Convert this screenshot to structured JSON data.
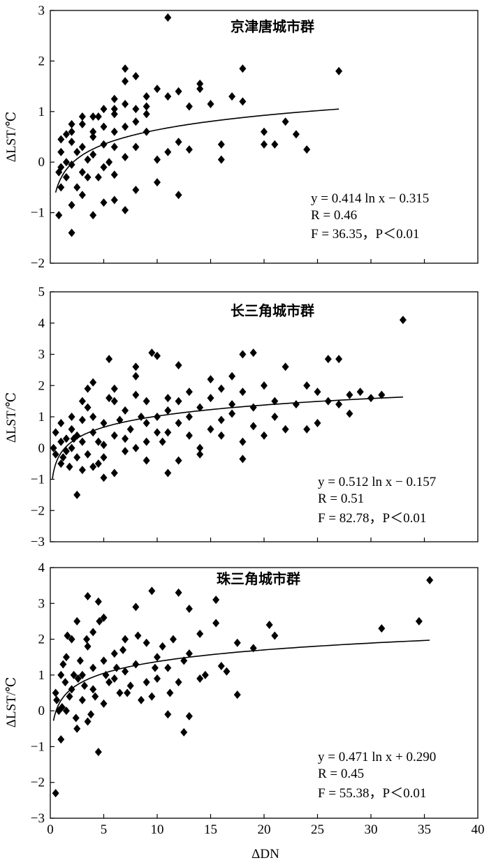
{
  "figure": {
    "xlabel": "ΔDN"
  },
  "chart_data": [
    {
      "type": "scatter",
      "title": "京津唐城市群",
      "ylabel": "ΔLST/℃",
      "xlim": [
        0,
        40
      ],
      "ylim": [
        -2,
        3
      ],
      "yticks": [
        -2,
        -1,
        0,
        1,
        2,
        3
      ],
      "fit": {
        "a": 0.414,
        "b": -0.315,
        "x_range": [
          0.5,
          27
        ]
      },
      "annotation": [
        "y = 0.414 ln x − 0.315",
        "R = 0.46",
        "F = 36.35，P＜0.01"
      ],
      "points": [
        [
          11,
          2.86
        ],
        [
          27,
          1.8
        ],
        [
          18,
          1.85
        ],
        [
          7,
          1.85
        ],
        [
          8,
          1.7
        ],
        [
          7,
          1.6
        ],
        [
          14,
          1.55
        ],
        [
          14,
          1.45
        ],
        [
          10,
          1.45
        ],
        [
          11,
          1.3
        ],
        [
          12,
          1.4
        ],
        [
          17,
          1.3
        ],
        [
          18,
          1.2
        ],
        [
          15,
          1.15
        ],
        [
          13,
          1.1
        ],
        [
          5,
          1.05
        ],
        [
          6,
          1.25
        ],
        [
          6,
          1.05
        ],
        [
          7,
          1.15
        ],
        [
          9,
          1.3
        ],
        [
          9,
          1.1
        ],
        [
          9,
          0.95
        ],
        [
          8,
          0.8
        ],
        [
          4,
          0.9
        ],
        [
          3,
          0.9
        ],
        [
          2,
          0.75
        ],
        [
          1,
          0.45
        ],
        [
          1,
          0.2
        ],
        [
          1.5,
          0.0
        ],
        [
          0.8,
          -0.2
        ],
        [
          1,
          -0.5
        ],
        [
          0.8,
          -1.05
        ],
        [
          2,
          -0.85
        ],
        [
          2,
          -1.4
        ],
        [
          4,
          -1.05
        ],
        [
          5,
          -0.8
        ],
        [
          7,
          -0.95
        ],
        [
          12,
          -0.65
        ],
        [
          22,
          0.8
        ],
        [
          23,
          0.55
        ],
        [
          20,
          0.6
        ],
        [
          20,
          0.35
        ],
        [
          21,
          0.35
        ],
        [
          24,
          0.25
        ],
        [
          16,
          0.35
        ],
        [
          16,
          0.05
        ],
        [
          13,
          0.25
        ],
        [
          12,
          0.4
        ],
        [
          11,
          0.2
        ],
        [
          10,
          0.05
        ],
        [
          10,
          -0.4
        ],
        [
          9,
          0.6
        ],
        [
          3,
          0.3
        ],
        [
          3,
          -0.2
        ],
        [
          2.5,
          -0.5
        ],
        [
          2,
          -0.05
        ],
        [
          4,
          0.6
        ],
        [
          5,
          0.35
        ],
        [
          6,
          0.6
        ],
        [
          6,
          -0.25
        ],
        [
          7,
          0.1
        ],
        [
          8,
          -0.55
        ],
        [
          3.5,
          0.05
        ],
        [
          4.5,
          -0.3
        ],
        [
          5.5,
          0.0
        ],
        [
          6,
          0.3
        ],
        [
          5,
          0.7
        ],
        [
          4,
          0.5
        ],
        [
          2.5,
          0.2
        ],
        [
          1.5,
          0.55
        ],
        [
          1.5,
          -0.3
        ],
        [
          3,
          -0.65
        ],
        [
          6,
          -0.75
        ],
        [
          8,
          0.3
        ],
        [
          7,
          0.7
        ],
        [
          4,
          0.15
        ],
        [
          5,
          -0.1
        ],
        [
          6,
          0.95
        ],
        [
          8,
          1.05
        ],
        [
          4.5,
          0.9
        ],
        [
          1,
          -0.1
        ],
        [
          2,
          0.4
        ],
        [
          3,
          0.75
        ],
        [
          3.5,
          -0.3
        ],
        [
          2,
          0.6
        ]
      ]
    },
    {
      "type": "scatter",
      "title": "长三角城市群",
      "ylabel": "ΔLST/℃",
      "xlim": [
        0,
        40
      ],
      "ylim": [
        -3,
        5
      ],
      "yticks": [
        -3,
        -2,
        -1,
        0,
        1,
        2,
        3,
        4,
        5
      ],
      "fit": {
        "a": 0.512,
        "b": -0.157,
        "x_range": [
          0.2,
          33
        ]
      },
      "annotation": [
        "y = 0.512 ln x − 0.157",
        "R = 0.51",
        "F = 82.78，P＜0.01"
      ],
      "points": [
        [
          33,
          4.1
        ],
        [
          10,
          2.95
        ],
        [
          9.5,
          3.05
        ],
        [
          5.5,
          2.85
        ],
        [
          18,
          3.0
        ],
        [
          19,
          3.05
        ],
        [
          26,
          2.85
        ],
        [
          27,
          2.85
        ],
        [
          22,
          2.6
        ],
        [
          8,
          2.6
        ],
        [
          8,
          2.3
        ],
        [
          12,
          2.65
        ],
        [
          4,
          2.1
        ],
        [
          3.5,
          1.9
        ],
        [
          15,
          2.2
        ],
        [
          17,
          2.3
        ],
        [
          20,
          2.0
        ],
        [
          24,
          2.0
        ],
        [
          25,
          1.8
        ],
        [
          28,
          1.7
        ],
        [
          29,
          1.8
        ],
        [
          30,
          1.6
        ],
        [
          31,
          1.7
        ],
        [
          28,
          1.1
        ],
        [
          21,
          1.0
        ],
        [
          22,
          0.6
        ],
        [
          24,
          0.6
        ],
        [
          18,
          0.2
        ],
        [
          18,
          -0.35
        ],
        [
          16,
          0.9
        ],
        [
          16,
          0.4
        ],
        [
          14,
          0.0
        ],
        [
          12,
          -0.4
        ],
        [
          11,
          -0.8
        ],
        [
          9,
          -0.4
        ],
        [
          5,
          -0.95
        ],
        [
          6,
          -0.8
        ],
        [
          3,
          -0.7
        ],
        [
          2.5,
          -1.5
        ],
        [
          0.5,
          0.5
        ],
        [
          0.5,
          -0.2
        ],
        [
          1,
          0.2
        ],
        [
          1,
          -0.5
        ],
        [
          1.5,
          0.3
        ],
        [
          1.5,
          -0.1
        ],
        [
          2,
          0.6
        ],
        [
          2,
          0.0
        ],
        [
          2.5,
          -0.3
        ],
        [
          3,
          0.2
        ],
        [
          3,
          0.9
        ],
        [
          3.5,
          1.3
        ],
        [
          4,
          0.5
        ],
        [
          4,
          1.0
        ],
        [
          4.5,
          -0.5
        ],
        [
          5,
          0.1
        ],
        [
          5,
          0.8
        ],
        [
          6,
          0.4
        ],
        [
          6,
          1.5
        ],
        [
          7,
          1.2
        ],
        [
          7,
          -0.1
        ],
        [
          7.5,
          0.6
        ],
        [
          8,
          1.7
        ],
        [
          8.5,
          1.0
        ],
        [
          9,
          0.2
        ],
        [
          9,
          1.5
        ],
        [
          10,
          1.0
        ],
        [
          10,
          0.5
        ],
        [
          11,
          1.6
        ],
        [
          11,
          1.2
        ],
        [
          12,
          0.8
        ],
        [
          12,
          1.5
        ],
        [
          13,
          1.0
        ],
        [
          13,
          0.4
        ],
        [
          14,
          1.3
        ],
        [
          15,
          1.6
        ],
        [
          15,
          0.6
        ],
        [
          16,
          1.9
        ],
        [
          17,
          1.1
        ],
        [
          17,
          1.4
        ],
        [
          18,
          1.8
        ],
        [
          19,
          1.3
        ],
        [
          20,
          0.4
        ],
        [
          21,
          1.5
        ],
        [
          23,
          1.4
        ],
        [
          25,
          0.8
        ],
        [
          26,
          1.5
        ],
        [
          27,
          1.4
        ],
        [
          2,
          1.0
        ],
        [
          2.5,
          0.4
        ],
        [
          3.5,
          -0.2
        ],
        [
          4.5,
          0.2
        ],
        [
          5.5,
          1.6
        ],
        [
          6.5,
          0.9
        ],
        [
          1,
          0.8
        ],
        [
          0.3,
          0.0
        ],
        [
          1.8,
          -0.6
        ],
        [
          3,
          1.5
        ],
        [
          6,
          1.9
        ],
        [
          8,
          0.0
        ],
        [
          9,
          0.8
        ],
        [
          10.5,
          0.2
        ],
        [
          14,
          -0.2
        ],
        [
          19,
          0.7
        ],
        [
          13,
          1.8
        ],
        [
          11,
          0.5
        ],
        [
          7,
          0.3
        ],
        [
          4,
          -0.6
        ],
        [
          5,
          -0.3
        ],
        [
          2.2,
          0.3
        ],
        [
          1.2,
          -0.3
        ]
      ]
    },
    {
      "type": "scatter",
      "title": "珠三角城市群",
      "ylabel": "ΔLST/℃",
      "xlabel": "ΔDN",
      "xlim": [
        0,
        40
      ],
      "ylim": [
        -3,
        4
      ],
      "yticks": [
        -3,
        -2,
        -1,
        0,
        1,
        2,
        3,
        4
      ],
      "xticks": [
        0,
        5,
        10,
        15,
        20,
        25,
        30,
        35,
        40
      ],
      "fit": {
        "a": 0.471,
        "b": 0.29,
        "x_range": [
          0.3,
          35.5
        ]
      },
      "annotation": [
        "y = 0.471 ln x + 0.290",
        "R = 0.45",
        "F = 55.38，P＜0.01"
      ],
      "points": [
        [
          35.5,
          3.65
        ],
        [
          34.5,
          2.5
        ],
        [
          31,
          2.3
        ],
        [
          9.5,
          3.35
        ],
        [
          12,
          3.3
        ],
        [
          3.5,
          3.2
        ],
        [
          4.5,
          3.05
        ],
        [
          15.5,
          3.1
        ],
        [
          13,
          2.85
        ],
        [
          8,
          2.9
        ],
        [
          14,
          2.15
        ],
        [
          15.5,
          2.45
        ],
        [
          20.5,
          2.4
        ],
        [
          21,
          2.1
        ],
        [
          17.5,
          1.9
        ],
        [
          19,
          1.75
        ],
        [
          16,
          1.25
        ],
        [
          16.5,
          1.1
        ],
        [
          17.5,
          0.45
        ],
        [
          13,
          -0.15
        ],
        [
          12.5,
          -0.6
        ],
        [
          11,
          -0.1
        ],
        [
          4.5,
          -1.15
        ],
        [
          0.5,
          -2.3
        ],
        [
          1,
          -0.8
        ],
        [
          1.5,
          0.0
        ],
        [
          0.5,
          0.5
        ],
        [
          1,
          1.0
        ],
        [
          1.5,
          1.5
        ],
        [
          2,
          2.0
        ],
        [
          2.5,
          2.5
        ],
        [
          3,
          1.0
        ],
        [
          3,
          0.3
        ],
        [
          3.5,
          1.8
        ],
        [
          4,
          0.6
        ],
        [
          4,
          2.2
        ],
        [
          5,
          1.4
        ],
        [
          5,
          0.2
        ],
        [
          5.5,
          0.8
        ],
        [
          6,
          1.6
        ],
        [
          6.5,
          0.5
        ],
        [
          7,
          1.1
        ],
        [
          7,
          2.0
        ],
        [
          7.5,
          0.7
        ],
        [
          8,
          1.3
        ],
        [
          8.5,
          0.3
        ],
        [
          9,
          1.9
        ],
        [
          9,
          0.8
        ],
        [
          10,
          1.5
        ],
        [
          10,
          0.9
        ],
        [
          11,
          1.2
        ],
        [
          11.5,
          2.0
        ],
        [
          12,
          0.8
        ],
        [
          13,
          1.6
        ],
        [
          14,
          0.9
        ],
        [
          2,
          0.6
        ],
        [
          2.5,
          -0.5
        ],
        [
          3.5,
          -0.3
        ],
        [
          4,
          1.2
        ],
        [
          5,
          2.6
        ],
        [
          6,
          0.9
        ],
        [
          1.2,
          1.3
        ],
        [
          2.2,
          1.0
        ],
        [
          3.2,
          0.7
        ],
        [
          0.8,
          0.0
        ],
        [
          1.8,
          0.4
        ],
        [
          2.8,
          1.4
        ],
        [
          4.2,
          0.4
        ],
        [
          6.2,
          1.2
        ],
        [
          8.2,
          2.1
        ],
        [
          9.5,
          0.4
        ],
        [
          10.5,
          1.8
        ],
        [
          12.5,
          1.4
        ],
        [
          14.5,
          1.0
        ],
        [
          7.2,
          0.5
        ],
        [
          5.2,
          1.0
        ],
        [
          3.8,
          -0.1
        ],
        [
          2.6,
          0.9
        ],
        [
          1.4,
          0.8
        ],
        [
          0.6,
          0.3
        ],
        [
          1.6,
          2.1
        ],
        [
          4.6,
          2.5
        ],
        [
          6.8,
          1.7
        ],
        [
          11.2,
          0.5
        ],
        [
          9.8,
          1.2
        ],
        [
          3.4,
          2.0
        ],
        [
          2.4,
          -0.2
        ],
        [
          1.1,
          0.1
        ]
      ]
    }
  ]
}
